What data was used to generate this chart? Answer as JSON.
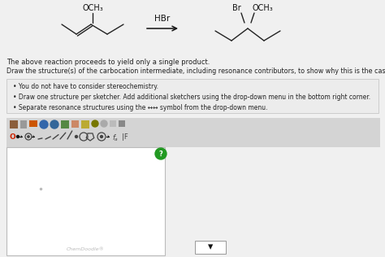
{
  "bg_color": "#f0f0f0",
  "white": "#ffffff",
  "black": "#111111",
  "text_color": "#222222",
  "gray_text": "#aaaaaa",
  "line1": "The above reaction proceeds to yield only a single product.",
  "line2": "Draw the structure(s) of the carbocation intermediate, including resonance contributors, to show why this is the case.",
  "bullet1": "You do not have to consider stereochemistry.",
  "bullet2": "Draw one structure per sketcher. Add additional sketchers using the drop-down menu in the bottom right corner.",
  "bullet3": "Separate resonance structures using the ↔↔ symbol from the drop-down menu.",
  "chemdoodle_label": "ChemDoodle®",
  "reagent": "HBr",
  "left_label": "OCH₃",
  "right_label1": "Br",
  "right_label2": "OCH₃",
  "toolbar1_colors": [
    "#8B4513",
    "#888888",
    "#cc6633",
    "#1155cc",
    "#3388bb",
    "#339933",
    "#ee8844",
    "#cc9900",
    "#888800",
    "#999999",
    "#cccccc",
    "#888888"
  ],
  "box_edge": "#cccccc",
  "box_face": "#f0f0f0",
  "sketch_edge": "#bbbbbb",
  "green_circle": "#229922",
  "drop_edge": "#999999"
}
